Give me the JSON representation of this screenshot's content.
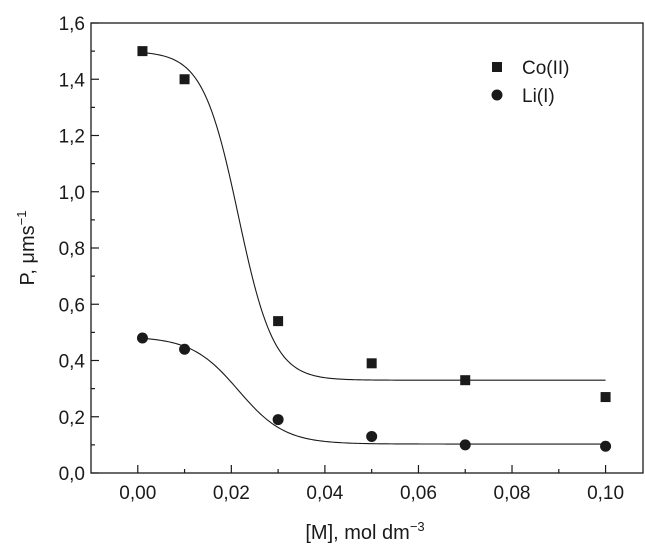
{
  "chart_data": {
    "type": "scatter",
    "title": "",
    "xlabel": "[M], mol dm",
    "xlabel_sup": "−3",
    "ylabel": "P, μms",
    "ylabel_sup": "−1",
    "xlim": [
      -0.01,
      0.108
    ],
    "ylim": [
      0.0,
      1.6
    ],
    "x_ticks": [
      0.0,
      0.02,
      0.04,
      0.06,
      0.08,
      0.1
    ],
    "x_tick_labels": [
      "0,00",
      "0,02",
      "0,04",
      "0,06",
      "0,08",
      "0,10"
    ],
    "y_ticks": [
      0.0,
      0.2,
      0.4,
      0.6,
      0.8,
      1.0,
      1.2,
      1.4,
      1.6
    ],
    "y_tick_labels": [
      "0,0",
      "0,2",
      "0,4",
      "0,6",
      "0,8",
      "1,0",
      "1,2",
      "1,4",
      "1,6"
    ],
    "grid": false,
    "legend_position": "top-right",
    "series": [
      {
        "name": "Co(II)",
        "marker": "square",
        "color": "#1a1a1a",
        "x": [
          0.001,
          0.01,
          0.03,
          0.05,
          0.07,
          0.1
        ],
        "y": [
          1.5,
          1.4,
          0.54,
          0.39,
          0.33,
          0.27
        ],
        "fit": {
          "upper": 1.5,
          "lower": 0.33,
          "center": 0.0215,
          "scale": 0.0038,
          "x_end": 0.1
        }
      },
      {
        "name": "Li(I)",
        "marker": "circle",
        "color": "#1a1a1a",
        "x": [
          0.001,
          0.01,
          0.03,
          0.05,
          0.07,
          0.1
        ],
        "y": [
          0.48,
          0.44,
          0.19,
          0.13,
          0.1,
          0.095
        ],
        "fit": {
          "upper": 0.485,
          "lower": 0.103,
          "center": 0.0215,
          "scale": 0.005,
          "x_end": 0.1
        }
      }
    ]
  }
}
